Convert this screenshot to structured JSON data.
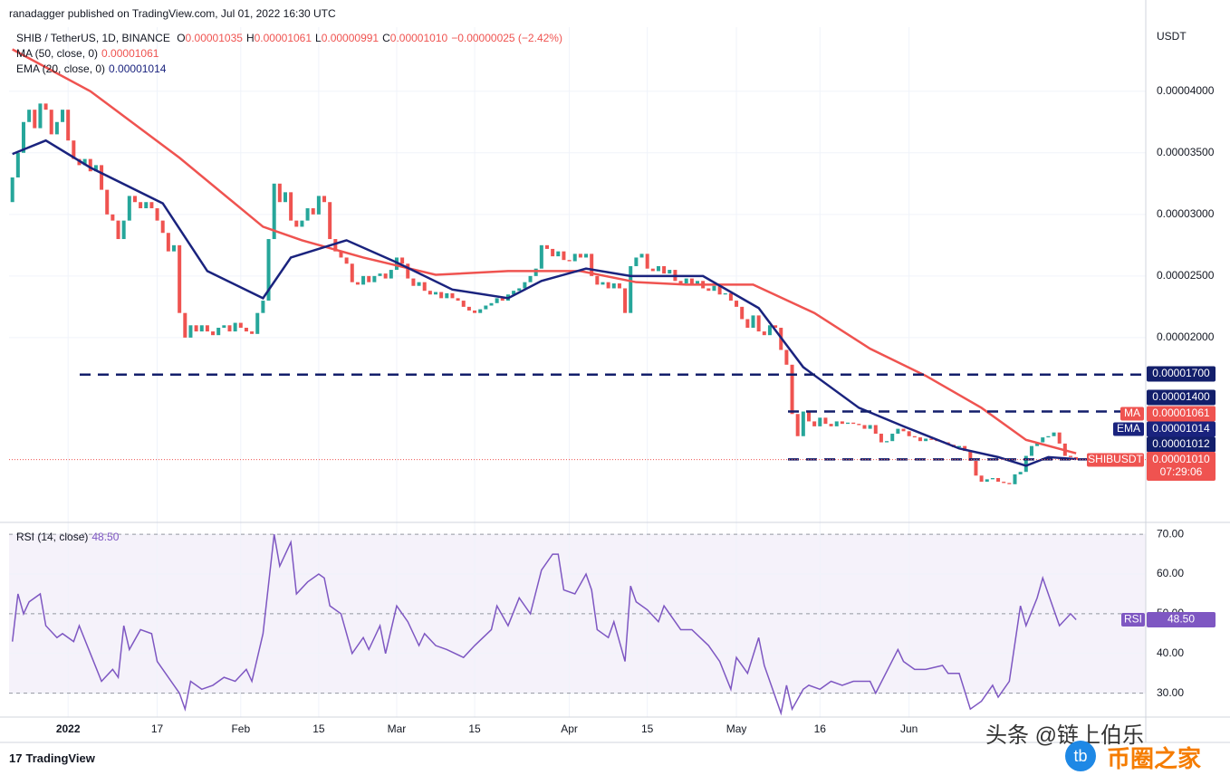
{
  "header": {
    "publisher": "ranadagger published on TradingView.com, Jul 01, 2022 16:30 UTC"
  },
  "footer": {
    "brand": "TradingView"
  },
  "watermark": {
    "text": "头条 @链上伯乐",
    "logo": "tb",
    "site": "币圈之家"
  },
  "chart_data": [
    {
      "type": "candlestick",
      "title": "SHIB / TetherUS, 1D, BINANCE",
      "axis_unit": "USDT",
      "ohlc": [
        {
          "label": "O",
          "value": "0.00001035"
        },
        {
          "label": "H",
          "value": "0.00001061"
        },
        {
          "label": "L",
          "value": "0.00000991"
        },
        {
          "label": "C",
          "value": "0.00001010"
        }
      ],
      "change": "−0.00000025 (−2.42%)",
      "up_color": "#26a69a",
      "down_color": "#ef5350",
      "first_open": 3.1e-05,
      "close": [
        3.3e-05,
        3.5e-05,
        3.75e-05,
        3.85e-05,
        3.7e-05,
        3.9e-05,
        3.85e-05,
        3.65e-05,
        3.75e-05,
        3.85e-05,
        3.6e-05,
        3.45e-05,
        3.4e-05,
        3.45e-05,
        3.35e-05,
        3.4e-05,
        3.2e-05,
        3e-05,
        2.95e-05,
        2.8e-05,
        2.95e-05,
        3.15e-05,
        3.1e-05,
        3.05e-05,
        3.1e-05,
        3.05e-05,
        2.95e-05,
        2.85e-05,
        2.7e-05,
        2.75e-05,
        2.2e-05,
        2e-05,
        2.1e-05,
        2.05e-05,
        2.1e-05,
        2.05e-05,
        2.02e-05,
        2.08e-05,
        2.1e-05,
        2.05e-05,
        2.12e-05,
        2.08e-05,
        2.05e-05,
        2.03e-05,
        2.2e-05,
        2.3e-05,
        2.8e-05,
        3.25e-05,
        3.1e-05,
        3.18e-05,
        2.95e-05,
        2.9e-05,
        2.95e-05,
        3.05e-05,
        3e-05,
        3.15e-05,
        3.1e-05,
        2.8e-05,
        2.7e-05,
        2.65e-05,
        2.6e-05,
        2.45e-05,
        2.43e-05,
        2.5e-05,
        2.45e-05,
        2.5e-05,
        2.52e-05,
        2.48e-05,
        2.55e-05,
        2.65e-05,
        2.6e-05,
        2.48e-05,
        2.42e-05,
        2.45e-05,
        2.38e-05,
        2.35e-05,
        2.37e-05,
        2.32e-05,
        2.36e-05,
        2.32e-05,
        2.3e-05,
        2.25e-05,
        2.22e-05,
        2.2e-05,
        2.23e-05,
        2.26e-05,
        2.28e-05,
        2.32e-05,
        2.3e-05,
        2.35e-05,
        2.38e-05,
        2.4e-05,
        2.45e-05,
        2.5e-05,
        2.56e-05,
        2.75e-05,
        2.72e-05,
        2.66e-05,
        2.7e-05,
        2.63e-05,
        2.62e-05,
        2.68e-05,
        2.65e-05,
        2.68e-05,
        2.5e-05,
        2.43e-05,
        2.45e-05,
        2.4e-05,
        2.44e-05,
        2.4e-05,
        2.2e-05,
        2.58e-05,
        2.65e-05,
        2.68e-05,
        2.56e-05,
        2.54e-05,
        2.58e-05,
        2.52e-05,
        2.55e-05,
        2.46e-05,
        2.44e-05,
        2.48e-05,
        2.43e-05,
        2.46e-05,
        2.4e-05,
        2.38e-05,
        2.42e-05,
        2.35e-05,
        2.36e-05,
        2.3e-05,
        2.25e-05,
        2.15e-05,
        2.08e-05,
        2.18e-05,
        2.05e-05,
        2.02e-05,
        2.1e-05,
        2.08e-05,
        1.9e-05,
        1.78e-05,
        1.38e-05,
        1.2e-05,
        1.4e-05,
        1.32e-05,
        1.28e-05,
        1.35e-05,
        1.3e-05,
        1.28e-05,
        1.32e-05,
        1.3e-05,
        1.31e-05,
        1.3e-05,
        1.29e-05,
        1.26e-05,
        1.29e-05,
        1.22e-05,
        1.15e-05,
        1.16e-05,
        1.22e-05,
        1.26e-05,
        1.24e-05,
        1.2e-05,
        1.19e-05,
        1.16e-05,
        1.18e-05,
        1.17e-05,
        1.16e-05,
        1.15e-05,
        1.13e-05,
        1.11e-05,
        1.12e-05,
        1.08e-05,
        1e-05,
        8.8e-06,
        8.3e-06,
        8.5e-06,
        8.6e-06,
        8.3e-06,
        8.2e-06,
        8.1e-06,
        8.9e-06,
        9.1e-06,
        1.04e-05,
        1.12e-05,
        1.15e-05,
        1.19e-05,
        1.2e-05,
        1.23e-05,
        1.14e-05,
        1.04e-05,
        1.03e-05,
        1.01e-05
      ],
      "series": [
        {
          "name": "MA (50, close, 0)",
          "tag": "MA",
          "value_label": "0.00001061",
          "color": "#ef5350",
          "x": [
            0,
            14,
            30,
            45,
            52,
            63,
            76,
            89,
            102,
            112,
            121,
            133,
            144,
            154,
            164,
            174,
            182,
            191
          ],
          "values": [
            4.34e-05,
            4e-05,
            3.46e-05,
            2.9e-05,
            2.79e-05,
            2.65e-05,
            2.51e-05,
            2.54e-05,
            2.54e-05,
            2.45e-05,
            2.43e-05,
            2.43e-05,
            2.2e-05,
            1.91e-05,
            1.69e-05,
            1.43e-05,
            1.17e-05,
            1.061e-05
          ]
        },
        {
          "name": "EMA (20, close, 0)",
          "tag": "EMA",
          "value_label": "0.00001014",
          "color": "#1a237e",
          "x": [
            0,
            6,
            14,
            27,
            35,
            45,
            50,
            60,
            69,
            79,
            89,
            95,
            103,
            111,
            124,
            134,
            142,
            152,
            160,
            170,
            177,
            182,
            186,
            191
          ],
          "values": [
            3.49e-05,
            3.6e-05,
            3.38e-05,
            3.09e-05,
            2.54e-05,
            2.32e-05,
            2.65e-05,
            2.79e-05,
            2.61e-05,
            2.39e-05,
            2.32e-05,
            2.46e-05,
            2.56e-05,
            2.5e-05,
            2.5e-05,
            2.24e-05,
            1.76e-05,
            1.43e-05,
            1.28e-05,
            1.1e-05,
            1.03e-05,
            9.6e-06,
            1.03e-05,
            1.014e-05
          ]
        }
      ],
      "levels": [
        {
          "value": 1.7e-05,
          "label": "0.00001700"
        },
        {
          "value": 1.4e-05,
          "label": "0.00001400"
        },
        {
          "value": 1.012e-05,
          "label": "0.00001012"
        }
      ],
      "level_color": "#131f6b",
      "last": {
        "symbol": "SHIBUSDT",
        "value_label": "0.00001010",
        "countdown": "07:29:06"
      },
      "xlim": [
        -0.6,
        203.5
      ],
      "ylim": [
        5e-06,
        4.52e-05
      ],
      "yticks": [
        {
          "value": 4e-05,
          "label": "0.00004000"
        },
        {
          "value": 3.5e-05,
          "label": "0.00003500"
        },
        {
          "value": 3e-05,
          "label": "0.00003000"
        },
        {
          "value": 2.5e-05,
          "label": "0.00002500"
        },
        {
          "value": 2e-05,
          "label": "0.00002000"
        }
      ],
      "xticks": [
        {
          "value": 10,
          "label": "2022"
        },
        {
          "value": 26,
          "label": "17"
        },
        {
          "value": 41,
          "label": "Feb"
        },
        {
          "value": 55,
          "label": "15"
        },
        {
          "value": 69,
          "label": "Mar"
        },
        {
          "value": 83,
          "label": "15"
        },
        {
          "value": 100,
          "label": "Apr"
        },
        {
          "value": 114,
          "label": "15"
        },
        {
          "value": 130,
          "label": "May"
        },
        {
          "value": 145,
          "label": "16"
        },
        {
          "value": 161,
          "label": "Jun"
        }
      ],
      "grid": true
    },
    {
      "type": "line",
      "title": "RSI (14, close)",
      "tag": "RSI",
      "value_label": "48.50",
      "color": "#7e57c2",
      "x": [
        0,
        1,
        2,
        3,
        5,
        6,
        8,
        9,
        11,
        12,
        14,
        16,
        18,
        19,
        20,
        21,
        23,
        25,
        26,
        30,
        31,
        32,
        34,
        36,
        38,
        40,
        42,
        43,
        45,
        47,
        48,
        50,
        51,
        53,
        55,
        56,
        57,
        59,
        61,
        63,
        64,
        66,
        67,
        69,
        71,
        73,
        74,
        76,
        78,
        81,
        83,
        86,
        87,
        89,
        91,
        93,
        95,
        97,
        98,
        99,
        101,
        103,
        104,
        105,
        107,
        108,
        110,
        111,
        112,
        114,
        116,
        117,
        120,
        122,
        125,
        127,
        129,
        130,
        132,
        134,
        135,
        138,
        139,
        140,
        142,
        143,
        145,
        147,
        149,
        151,
        154,
        155,
        159,
        160,
        162,
        164,
        167,
        168,
        170,
        172,
        174,
        176,
        177,
        179,
        181,
        182,
        184,
        185,
        186,
        188,
        190,
        191
      ],
      "values": [
        43,
        55,
        50,
        53,
        55,
        47,
        44,
        45,
        43,
        47,
        40,
        33,
        36,
        34,
        47,
        41,
        46,
        45,
        38,
        30,
        26,
        33,
        31,
        32,
        34,
        33,
        36,
        33,
        45,
        70,
        62,
        68,
        55,
        58,
        60,
        59,
        52,
        50,
        40,
        44,
        41,
        47,
        40,
        52,
        48,
        42,
        45,
        42,
        41,
        39,
        42,
        46,
        52,
        47,
        54,
        50,
        61,
        65,
        65,
        56,
        55,
        60,
        56,
        46,
        44,
        48,
        38,
        57,
        53,
        51,
        48,
        52,
        46,
        46,
        42,
        38,
        31,
        39,
        35,
        44,
        37,
        25,
        32,
        26,
        31,
        32,
        31,
        33,
        32,
        33,
        33,
        30,
        41,
        38,
        36,
        36,
        37,
        35,
        35,
        26,
        28,
        32,
        29,
        33,
        52,
        47,
        54,
        59,
        55,
        47,
        50,
        48.5
      ],
      "levels": [
        70,
        50,
        30
      ],
      "xlim": [
        -0.6,
        203.5
      ],
      "ylim": [
        24,
        73
      ],
      "yticks": [
        {
          "value": 70,
          "label": "70.00"
        },
        {
          "value": 60,
          "label": "60.00"
        },
        {
          "value": 50,
          "label": "50.00"
        },
        {
          "value": 40,
          "label": "40.00"
        },
        {
          "value": 30,
          "label": "30.00"
        }
      ]
    }
  ]
}
